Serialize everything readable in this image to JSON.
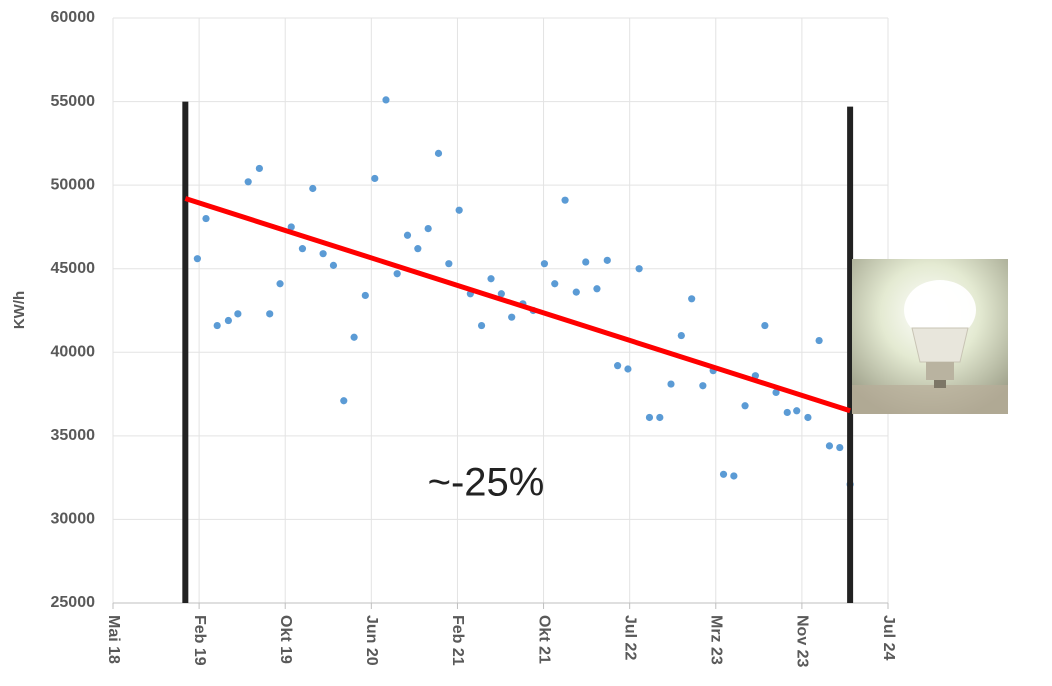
{
  "chart_data": {
    "type": "scatter",
    "y_label": "KW/h",
    "annotation": "~-25%",
    "xlim": [
      0,
      9
    ],
    "xticks": [
      {
        "value": 0,
        "label": "Mai 18"
      },
      {
        "value": 1,
        "label": "Feb 19"
      },
      {
        "value": 2,
        "label": "Okt 19"
      },
      {
        "value": 3,
        "label": "Jun 20"
      },
      {
        "value": 4,
        "label": "Feb 21"
      },
      {
        "value": 5,
        "label": "Okt 21"
      },
      {
        "value": 6,
        "label": "Jul 22"
      },
      {
        "value": 7,
        "label": "Mrz 23"
      },
      {
        "value": 8,
        "label": "Nov 23"
      },
      {
        "value": 9,
        "label": "Jul 24"
      }
    ],
    "ylim": [
      25000,
      60000
    ],
    "yticks": [
      25000,
      30000,
      35000,
      40000,
      45000,
      50000,
      55000,
      60000
    ],
    "grid": true,
    "color": "#5b9bd5",
    "x": [
      0.98,
      1.08,
      1.21,
      1.34,
      1.45,
      1.57,
      1.7,
      1.82,
      1.94,
      2.07,
      2.2,
      2.32,
      2.44,
      2.56,
      2.68,
      2.8,
      2.93,
      3.04,
      3.17,
      3.3,
      3.42,
      3.54,
      3.66,
      3.78,
      3.9,
      4.02,
      4.15,
      4.28,
      4.39,
      4.51,
      4.63,
      4.76,
      4.88,
      5.01,
      5.13,
      5.25,
      5.38,
      5.49,
      5.62,
      5.74,
      5.86,
      5.98,
      6.11,
      6.23,
      6.35,
      6.48,
      6.6,
      6.72,
      6.85,
      6.97,
      7.09,
      7.21,
      7.34,
      7.46,
      7.57,
      7.7,
      7.83,
      7.94,
      8.07,
      8.2,
      8.32,
      8.44,
      8.56
    ],
    "values": [
      45600,
      48000,
      41600,
      41900,
      42300,
      50200,
      51000,
      42300,
      44100,
      47500,
      46200,
      49800,
      45900,
      45200,
      37100,
      40900,
      43400,
      50400,
      55100,
      44700,
      47000,
      46200,
      47400,
      51900,
      45300,
      48500,
      43500,
      41600,
      44400,
      43500,
      42100,
      42900,
      42500,
      45300,
      44100,
      49100,
      43600,
      45400,
      43800,
      45500,
      39200,
      39000,
      45000,
      36100,
      36100,
      38100,
      41000,
      43200,
      38000,
      38900,
      32700,
      32600,
      36800,
      38600,
      41600,
      37600,
      36400,
      36500,
      36100,
      40700,
      34400,
      34300,
      32100
    ],
    "trend": {
      "color": "#ff0000",
      "x": [
        0.84,
        8.56
      ],
      "values": [
        49200,
        36500
      ]
    },
    "bounds": {
      "color": "#222222",
      "x": [
        0.84,
        8.56
      ],
      "low": [
        25000,
        25000
      ],
      "high": [
        55000,
        54700
      ]
    }
  }
}
